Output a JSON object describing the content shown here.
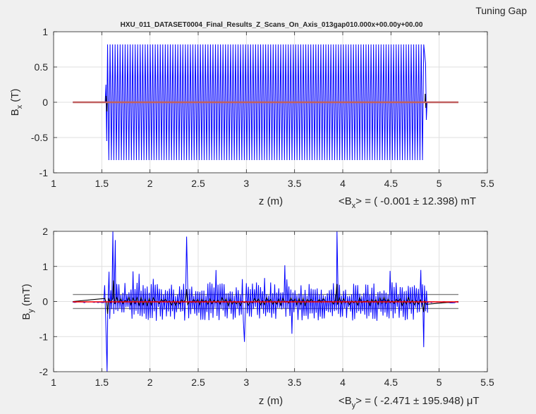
{
  "figure": {
    "corner_label": "Tuning Gap",
    "title": "HXU_011_DATASET0004_Final_Results_Z_Scans_On_Axis_013gap010.000x+00.00y+00.00"
  },
  "chart_data": [
    {
      "type": "line",
      "xlabel": "z (m)",
      "ylabel": "B",
      "ylabel_sub": "x",
      "ylabel_unit": " (T)",
      "xlim": [
        1,
        5.5
      ],
      "ylim": [
        -1,
        1
      ],
      "xticks": [
        1,
        1.5,
        2,
        2.5,
        3,
        3.5,
        4,
        4.5,
        5,
        5.5
      ],
      "xtick_labels": [
        "1",
        "1.5",
        "2",
        "2.5",
        "3",
        "3.5",
        "4",
        "4.5",
        "5",
        "5.5"
      ],
      "yticks": [
        -1,
        -0.5,
        0,
        0.5,
        1
      ],
      "ytick_labels": [
        "-1",
        "-0.5",
        "0",
        "0.5",
        "1"
      ],
      "grid": true,
      "stat": {
        "lhs": "<B",
        "sub": "x",
        "rhs": "> = ( -0.001 ± 12.398) mT"
      },
      "series": [
        {
          "color": "#0000ff",
          "description": "oscillating on-axis field",
          "x_start": 1.2,
          "x_end": 5.2,
          "ramp_start": 1.535,
          "flat_start": 1.56,
          "flat_end": 4.84,
          "ramp_end": 4.875,
          "amplitude": 0.82,
          "periods": 126
        },
        {
          "color": "#000000",
          "description": "first integral",
          "x_start": 1.2,
          "x_end": 5.2,
          "spikes": [
            {
              "x": 1.545,
              "y": 0.09
            },
            {
              "x": 1.553,
              "y": -0.13
            },
            {
              "x": 4.856,
              "y": 0.12
            },
            {
              "x": 4.862,
              "y": -0.08
            }
          ]
        },
        {
          "color": "#c06060",
          "description": "reference level",
          "x_start": 1.2,
          "x_end": 5.2,
          "y": 0
        }
      ]
    },
    {
      "type": "line",
      "xlabel": "z (m)",
      "ylabel": "B",
      "ylabel_sub": "y",
      "ylabel_unit": " (mT)",
      "xlim": [
        1,
        5.5
      ],
      "ylim": [
        -2,
        2
      ],
      "xticks": [
        1,
        1.5,
        2,
        2.5,
        3,
        3.5,
        4,
        4.5,
        5,
        5.5
      ],
      "xtick_labels": [
        "1",
        "1.5",
        "2",
        "2.5",
        "3",
        "3.5",
        "4",
        "4.5",
        "5",
        "5.5"
      ],
      "yticks": [
        -2,
        -1,
        0,
        1,
        2
      ],
      "ytick_labels": [
        "-2",
        "-1",
        "0",
        "1",
        "2"
      ],
      "grid": true,
      "stat": {
        "lhs": "<B",
        "sub": "y",
        "rhs": "> = ( -2.471 ± 195.948) μT"
      },
      "tolerance_lines": [
        0.2,
        -0.2
      ],
      "tolerance_color": "#808080",
      "series": [
        {
          "color": "#0000ff",
          "description": "on-axis field",
          "x_start": 1.2,
          "x_end": 5.2,
          "active_start": 1.53,
          "active_end": 4.88,
          "base_amplitude": 0.4,
          "peaks": [
            {
              "x": 1.555,
              "y": -2.0
            },
            {
              "x": 1.575,
              "y": 0.85
            },
            {
              "x": 1.615,
              "y": 2.0
            },
            {
              "x": 1.64,
              "y": 1.75
            },
            {
              "x": 2.38,
              "y": 1.85
            },
            {
              "x": 2.98,
              "y": -1.15
            },
            {
              "x": 3.94,
              "y": 2.0
            },
            {
              "x": 4.84,
              "y": -1.3
            },
            {
              "x": 4.81,
              "y": 0.9
            }
          ]
        },
        {
          "color": "#000000",
          "description": "smoothed field",
          "x_start": 1.2,
          "x_end": 5.2,
          "active_start": 1.53,
          "active_end": 4.88,
          "base_amplitude": 0.12
        },
        {
          "color": "#ff0000",
          "description": "mean level",
          "x_start": 1.2,
          "x_end": 5.2,
          "y": -0.01
        }
      ]
    }
  ]
}
